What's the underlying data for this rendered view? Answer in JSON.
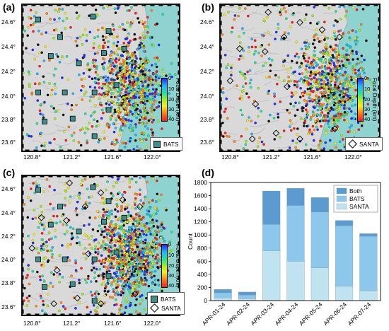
{
  "panels": {
    "a": {
      "label": "(a)",
      "legend": [
        "BATS"
      ]
    },
    "b": {
      "label": "(b)",
      "legend": [
        "SANTA"
      ]
    },
    "c": {
      "label": "(c)",
      "legend": [
        "BATS",
        "SANTA"
      ]
    },
    "d": {
      "label": "(d)"
    }
  },
  "map_axes": {
    "lon_ticks": [
      "120.8°",
      "121.2°",
      "121.6°",
      "122.0°"
    ],
    "lat_ticks": [
      "24.6°",
      "24.4°",
      "24.2°",
      "24.0°",
      "23.8°",
      "23.6°"
    ],
    "colorbar_ticks": [
      "0",
      "10",
      "20",
      "30",
      "40"
    ],
    "colorbar_title": "Focal Depth (km)"
  },
  "colors": {
    "land": "#d9d9d9",
    "sea": "#8fd3d1",
    "station_fill": "#3f8f8f",
    "both": "#5b9bd0",
    "bats": "#8dc8ec",
    "santa": "#bfe3ef"
  },
  "chart_data": {
    "type": "bar",
    "stacked": true,
    "categories": [
      "APR-01-24",
      "APR-02-24",
      "APR-03-24",
      "APR-04-24",
      "APR-05-24",
      "APR-06-24",
      "APR-07-24"
    ],
    "series": [
      {
        "name": "SANTA",
        "values": [
          40,
          30,
          760,
          600,
          500,
          220,
          150
        ]
      },
      {
        "name": "BATS",
        "values": [
          80,
          55,
          400,
          850,
          850,
          920,
          830
        ]
      },
      {
        "name": "Both",
        "values": [
          50,
          45,
          510,
          260,
          220,
          80,
          40
        ]
      }
    ],
    "ylabel": "Count",
    "xlabel": "",
    "ylim": [
      0,
      1800
    ],
    "yticks": [
      0,
      200,
      400,
      600,
      800,
      1000,
      1200,
      1400,
      1600,
      1800
    ],
    "legend_position": "top-right",
    "grid": false
  }
}
